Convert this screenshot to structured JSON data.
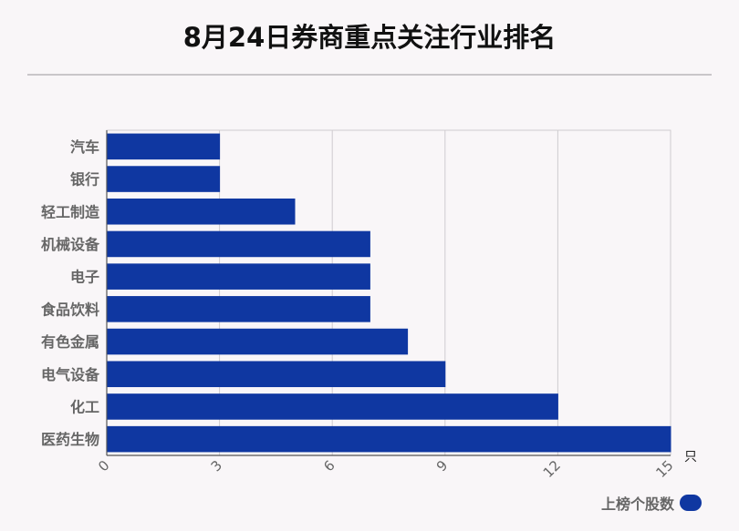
{
  "title": "8月24日券商重点关注行业排名",
  "unit": "只",
  "legend": {
    "label": "上榜个股数",
    "color": "#0f37a1"
  },
  "chart_data": {
    "type": "bar",
    "orientation": "horizontal",
    "categories": [
      "汽车",
      "银行",
      "轻工制造",
      "机械设备",
      "电子",
      "食品饮料",
      "有色金属",
      "电气设备",
      "化工",
      "医药生物"
    ],
    "series": [
      {
        "name": "上榜个股数",
        "values": [
          3,
          3,
          5,
          7,
          7,
          7,
          8,
          9,
          12,
          15
        ]
      }
    ],
    "xlim": [
      0,
      15
    ],
    "xticks": [
      "0",
      "3",
      "6",
      "9",
      "12",
      "15"
    ],
    "grid": true,
    "legend_position": "bottom-right",
    "bar_color": "#0f37a1"
  }
}
